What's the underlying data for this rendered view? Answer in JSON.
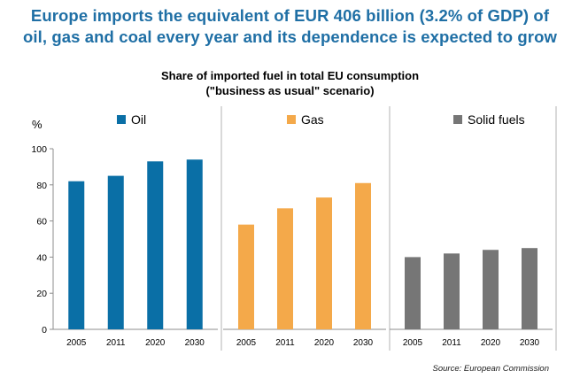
{
  "headline": {
    "line1": "Europe imports the equivalent of EUR 406 billion (3.2% of GDP) of",
    "line2": "oil, gas and coal every year and its dependence is expected to grow"
  },
  "source": "Source: European Commission",
  "chart_data": {
    "type": "bar",
    "title": "Share of imported fuel in total EU consumption",
    "subtitle": "(\"business as usual\" scenario)",
    "ylabel": "%",
    "ylim": [
      0,
      100
    ],
    "yticks": [
      0,
      20,
      40,
      60,
      80,
      100
    ],
    "categories": [
      "2005",
      "2011",
      "2020",
      "2030"
    ],
    "grid": false,
    "legend_placement": "top",
    "series": [
      {
        "name": "Oil",
        "color": "#0a6fa6",
        "values": [
          82,
          85,
          93,
          94
        ]
      },
      {
        "name": "Gas",
        "color": "#f4a94a",
        "values": [
          58,
          67,
          73,
          81
        ]
      },
      {
        "name": "Solid fuels",
        "color": "#767676",
        "values": [
          40,
          42,
          44,
          45
        ]
      }
    ]
  }
}
